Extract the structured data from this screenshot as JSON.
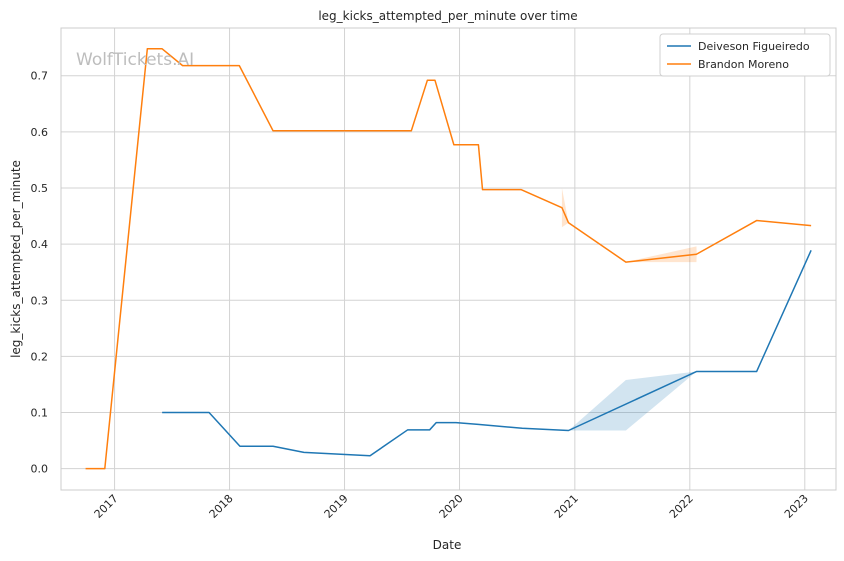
{
  "chart_data": {
    "type": "line",
    "title": "leg_kicks_attempted_per_minute over time",
    "xlabel": "Date",
    "ylabel": "leg_kicks_attempted_per_minute",
    "watermark": "WolfTickets.AI",
    "x_ticks": [
      "2017",
      "2018",
      "2019",
      "2020",
      "2021",
      "2022",
      "2023"
    ],
    "y_ticks": [
      "0.0",
      "0.1",
      "0.2",
      "0.3",
      "0.4",
      "0.5",
      "0.6",
      "0.7"
    ],
    "xlim": [
      "2016-07-15",
      "2023-04-10"
    ],
    "ylim": [
      -0.038,
      0.785
    ],
    "grid": true,
    "legend_position": "top-right",
    "series": [
      {
        "name": "Deiveson Figueiredo",
        "color": "#1f77b4",
        "points": [
          [
            "2017-06-01",
            0.1
          ],
          [
            "2017-10-28",
            0.1
          ],
          [
            "2018-02-03",
            0.04
          ],
          [
            "2018-05-19",
            0.04
          ],
          [
            "2018-08-25",
            0.029
          ],
          [
            "2019-03-23",
            0.023
          ],
          [
            "2019-07-20",
            0.069
          ],
          [
            "2019-09-28",
            0.069
          ],
          [
            "2019-10-19",
            0.082
          ],
          [
            "2019-12-21",
            0.082
          ],
          [
            "2020-02-29",
            0.079
          ],
          [
            "2020-07-18",
            0.072
          ],
          [
            "2020-12-12",
            0.068
          ],
          [
            "2022-01-22",
            0.173
          ],
          [
            "2022-08-01",
            0.173
          ],
          [
            "2023-01-21",
            0.389
          ]
        ],
        "band": [
          [
            "2020-12-12",
            0.068,
            0.068
          ],
          [
            "2021-06-12",
            0.068,
            0.158
          ],
          [
            "2022-01-22",
            0.173,
            0.173
          ]
        ]
      },
      {
        "name": "Brandon Moreno",
        "color": "#ff7f0e",
        "points": [
          [
            "2016-10-01",
            0.0
          ],
          [
            "2016-12-01",
            0.0
          ],
          [
            "2017-04-15",
            0.748
          ],
          [
            "2017-06-01",
            0.748
          ],
          [
            "2017-08-05",
            0.718
          ],
          [
            "2018-02-01",
            0.718
          ],
          [
            "2018-05-19",
            0.602
          ],
          [
            "2019-08-01",
            0.602
          ],
          [
            "2019-09-21",
            0.692
          ],
          [
            "2019-10-15",
            0.692
          ],
          [
            "2019-12-14",
            0.577
          ],
          [
            "2020-03-01",
            0.577
          ],
          [
            "2020-03-14",
            0.497
          ],
          [
            "2020-07-15",
            0.497
          ],
          [
            "2020-11-21",
            0.465
          ],
          [
            "2020-12-12",
            0.438
          ],
          [
            "2021-06-12",
            0.368
          ],
          [
            "2022-01-22",
            0.382
          ],
          [
            "2022-08-01",
            0.442
          ],
          [
            "2023-01-21",
            0.433
          ]
        ],
        "band": [
          [
            "2020-11-21",
            0.43,
            0.5
          ],
          [
            "2020-12-12",
            0.438,
            0.438
          ],
          [
            "2021-06-12",
            0.368,
            0.368
          ],
          [
            "2022-01-22",
            0.368,
            0.396
          ],
          [
            "2022-01-23",
            0.382,
            0.382
          ]
        ]
      }
    ]
  }
}
